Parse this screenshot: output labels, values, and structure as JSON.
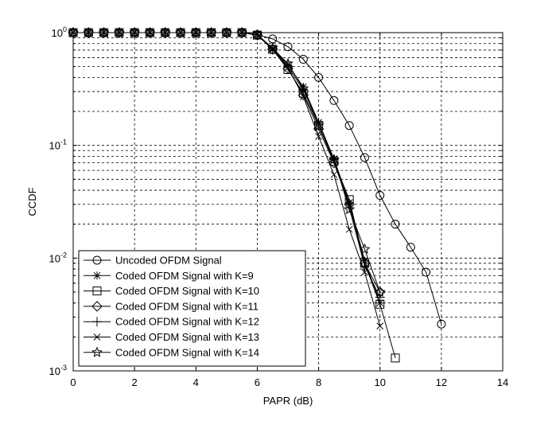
{
  "chart_data": {
    "type": "line",
    "title": "",
    "xlabel": "PAPR (dB)",
    "ylabel": "CCDF",
    "xlim": [
      0,
      14
    ],
    "ylim": [
      0.001,
      1
    ],
    "yscale": "log",
    "grid": true,
    "legend_position": "bottom-left",
    "x_ticks": [
      "0",
      "2",
      "4",
      "6",
      "8",
      "10",
      "12",
      "14"
    ],
    "y_ticks": [
      {
        "base": "10",
        "exp": "0"
      },
      {
        "base": "10",
        "exp": "-1"
      },
      {
        "base": "10",
        "exp": "-2"
      },
      {
        "base": "10",
        "exp": "-3"
      }
    ],
    "series": [
      {
        "name": "Uncoded OFDM Signal",
        "marker": "circle",
        "x": [
          0,
          0.5,
          1,
          1.5,
          2,
          2.5,
          3,
          3.5,
          4,
          4.5,
          5,
          5.5,
          6,
          6.5,
          7,
          7.5,
          8,
          8.5,
          9,
          9.5,
          10,
          10.5,
          11,
          11.5,
          12
        ],
        "y": [
          1,
          1,
          1,
          1,
          1,
          1,
          1,
          1,
          1,
          1,
          1,
          1,
          0.96,
          0.88,
          0.75,
          0.58,
          0.4,
          0.25,
          0.15,
          0.078,
          0.036,
          0.02,
          0.0125,
          0.0075,
          0.0026
        ]
      },
      {
        "name": "Coded OFDM Signal with K=9",
        "marker": "asterisk",
        "x": [
          0,
          0.5,
          1,
          1.5,
          2,
          2.5,
          3,
          3.5,
          4,
          4.5,
          5,
          5.5,
          6,
          6.5,
          7,
          7.5,
          8,
          8.5,
          9,
          9.5,
          10
        ],
        "y": [
          1,
          1,
          1,
          1,
          1,
          1,
          1,
          1,
          1,
          1,
          1,
          1,
          0.96,
          0.72,
          0.52,
          0.33,
          0.16,
          0.076,
          0.031,
          0.0095,
          0.004
        ]
      },
      {
        "name": "Coded OFDM Signal with K=10",
        "marker": "square",
        "x": [
          0,
          0.5,
          1,
          1.5,
          2,
          2.5,
          3,
          3.5,
          4,
          4.5,
          5,
          5.5,
          6,
          6.5,
          7,
          7.5,
          8,
          8.5,
          9,
          9.5,
          10,
          10.5
        ],
        "y": [
          1,
          1,
          1,
          1,
          1,
          1,
          1,
          1,
          1,
          1,
          1,
          1,
          0.95,
          0.71,
          0.47,
          0.29,
          0.15,
          0.072,
          0.033,
          0.009,
          0.0039,
          0.0013
        ]
      },
      {
        "name": "Coded OFDM Signal with K=11",
        "marker": "diamond",
        "x": [
          0,
          0.5,
          1,
          1.5,
          2,
          2.5,
          3,
          3.5,
          4,
          4.5,
          5,
          5.5,
          6,
          6.5,
          7,
          7.5,
          8,
          8.5,
          9,
          9.5,
          10
        ],
        "y": [
          1,
          1,
          1,
          1,
          1,
          1,
          1,
          1,
          1,
          1,
          1,
          1,
          0.95,
          0.71,
          0.48,
          0.28,
          0.14,
          0.07,
          0.03,
          0.009,
          0.005
        ]
      },
      {
        "name": "Coded OFDM Signal with K=12",
        "marker": "plus",
        "x": [
          0,
          0.5,
          1,
          1.5,
          2,
          2.5,
          3,
          3.5,
          4,
          4.5,
          5,
          5.5,
          6,
          6.5,
          7,
          7.5,
          8,
          8.5,
          9,
          9.5,
          10
        ],
        "y": [
          1,
          1,
          1,
          1,
          1,
          1,
          1,
          1,
          1,
          1,
          1,
          1,
          0.96,
          0.72,
          0.5,
          0.31,
          0.16,
          0.075,
          0.028,
          0.0085,
          0.0045
        ]
      },
      {
        "name": "Coded OFDM Signal with K=13",
        "marker": "cross",
        "x": [
          0,
          0.5,
          1,
          1.5,
          2,
          2.5,
          3,
          3.5,
          4,
          4.5,
          5,
          5.5,
          6,
          6.5,
          7,
          7.5,
          8,
          8.5,
          9,
          9.5,
          10
        ],
        "y": [
          1,
          1,
          1,
          1,
          1,
          1,
          1,
          1,
          1,
          1,
          1,
          1,
          0.96,
          0.71,
          0.49,
          0.27,
          0.12,
          0.055,
          0.018,
          0.0075,
          0.0025
        ]
      },
      {
        "name": "Coded OFDM Signal with K=14",
        "marker": "star",
        "x": [
          0,
          0.5,
          1,
          1.5,
          2,
          2.5,
          3,
          3.5,
          4,
          4.5,
          5,
          5.5,
          6,
          6.5,
          7,
          7.5,
          8,
          8.5,
          9,
          9.5,
          10
        ],
        "y": [
          1,
          1,
          1,
          1,
          1,
          1,
          1,
          1,
          1,
          1,
          1,
          1,
          0.96,
          0.73,
          0.53,
          0.32,
          0.15,
          0.075,
          0.027,
          0.012,
          0.005
        ]
      }
    ]
  }
}
